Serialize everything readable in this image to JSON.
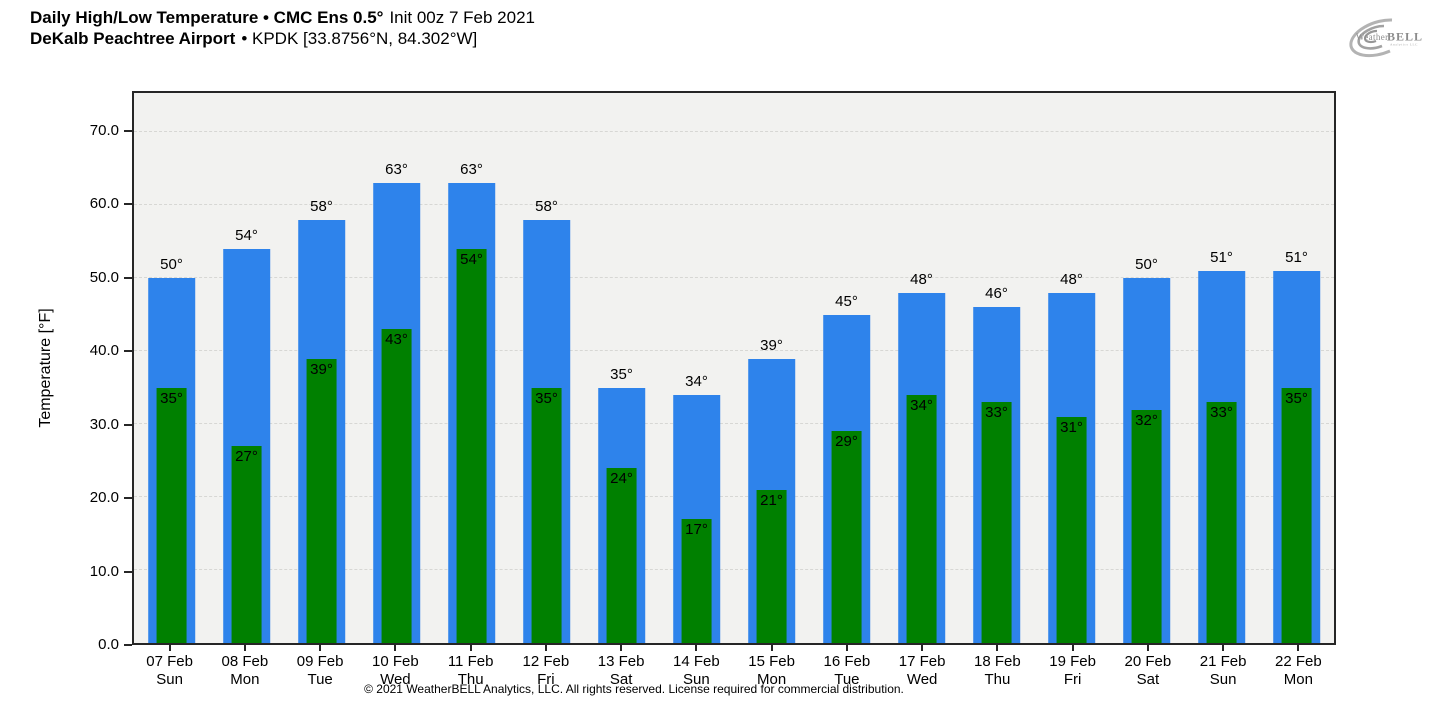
{
  "header": {
    "title_bold": "Daily High/Low Temperature • CMC Ens 0.5°",
    "title_regular": "Init 00z 7 Feb 2021",
    "subtitle_bold": "DeKalb Peachtree Airport",
    "subtitle_regular": "• KPDK [33.8756°N, 84.302°W]"
  },
  "logo": {
    "brand_left": "Weather",
    "brand_right": "BELL",
    "tagline": "Analytics LLC"
  },
  "footer": {
    "copyright": "© 2021 WeatherBELL Analytics, LLC. All rights reserved. License required for commercial distribution."
  },
  "chart_data": {
    "type": "bar",
    "title": "Daily High/Low Temperature • CMC Ens 0.5° Init 00z 7 Feb 2021",
    "subtitle": "DeKalb Peachtree Airport • KPDK [33.8756°N, 84.302°W]",
    "xlabel": "",
    "ylabel": "Temperature [°F]",
    "ylim": [
      0,
      75.4
    ],
    "yticks": [
      0,
      10,
      20,
      30,
      40,
      50,
      60,
      70
    ],
    "ytick_labels": [
      "0.0",
      "10.0",
      "20.0",
      "30.0",
      "40.0",
      "50.0",
      "60.0",
      "70.0"
    ],
    "grid": "horizontal-dashed",
    "legend": "none",
    "value_suffix": "°",
    "categories": [
      {
        "date": "07 Feb",
        "day": "Sun"
      },
      {
        "date": "08 Feb",
        "day": "Mon"
      },
      {
        "date": "09 Feb",
        "day": "Tue"
      },
      {
        "date": "10 Feb",
        "day": "Wed"
      },
      {
        "date": "11 Feb",
        "day": "Thu"
      },
      {
        "date": "12 Feb",
        "day": "Fri"
      },
      {
        "date": "13 Feb",
        "day": "Sat"
      },
      {
        "date": "14 Feb",
        "day": "Sun"
      },
      {
        "date": "15 Feb",
        "day": "Mon"
      },
      {
        "date": "16 Feb",
        "day": "Tue"
      },
      {
        "date": "17 Feb",
        "day": "Wed"
      },
      {
        "date": "18 Feb",
        "day": "Thu"
      },
      {
        "date": "19 Feb",
        "day": "Fri"
      },
      {
        "date": "20 Feb",
        "day": "Sat"
      },
      {
        "date": "21 Feb",
        "day": "Sun"
      },
      {
        "date": "22 Feb",
        "day": "Mon"
      }
    ],
    "series": [
      {
        "name": "High",
        "color": "#2e83eb",
        "values": [
          50,
          54,
          58,
          63,
          63,
          58,
          35,
          34,
          39,
          45,
          48,
          46,
          48,
          50,
          51,
          51
        ]
      },
      {
        "name": "Low",
        "color": "#008000",
        "values": [
          35,
          27,
          39,
          43,
          54,
          35,
          24,
          17,
          21,
          29,
          34,
          33,
          31,
          32,
          33,
          35
        ]
      }
    ],
    "colors": {
      "plot_background": "#f2f2f0",
      "figure_background": "#ffffff",
      "gridline": "#d7d7d4",
      "axis_frame": "#262626",
      "label_text": "#000000"
    }
  }
}
